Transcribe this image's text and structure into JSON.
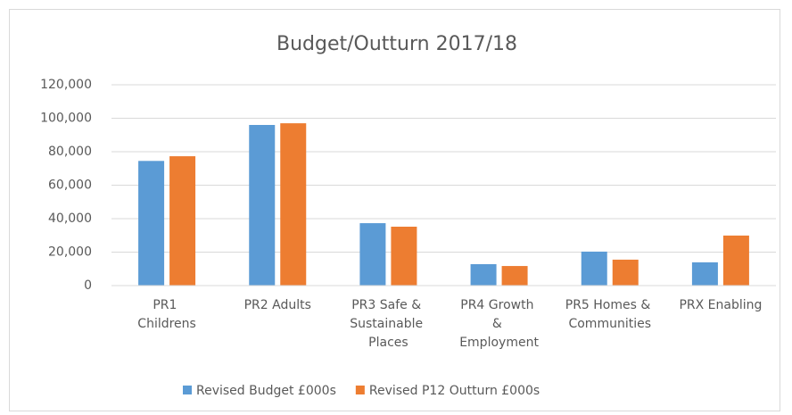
{
  "chart_data": {
    "type": "bar",
    "title": "Budget/Outturn 2017/18",
    "categories": [
      "PR1 Childrens",
      "PR2 Adults",
      "PR3 Safe & Sustainable Places",
      "PR4 Growth & Employment",
      "PR5 Homes & Communities",
      "PRX Enabling"
    ],
    "series": [
      {
        "name": "Revised Budget £000s",
        "color": "#5b9bd5",
        "values": [
          74500,
          96000,
          37300,
          12800,
          20300,
          13900
        ]
      },
      {
        "name": "Revised P12 Outturn £000s",
        "color": "#ed7d31",
        "values": [
          77300,
          97000,
          35200,
          11700,
          15500,
          29900
        ]
      }
    ],
    "ylim": [
      0,
      120000
    ],
    "yticks": [
      0,
      {
        "value": 20000,
        "label": "20,000"
      },
      {
        "value": 40000,
        "label": "40,000"
      },
      {
        "value": 60000,
        "label": "60,000"
      },
      {
        "value": 80000,
        "label": "80,000"
      },
      {
        "value": 100000,
        "label": "100,000"
      },
      {
        "value": 120000,
        "label": "120,000"
      }
    ],
    "grid": true,
    "legend": "bottom"
  }
}
